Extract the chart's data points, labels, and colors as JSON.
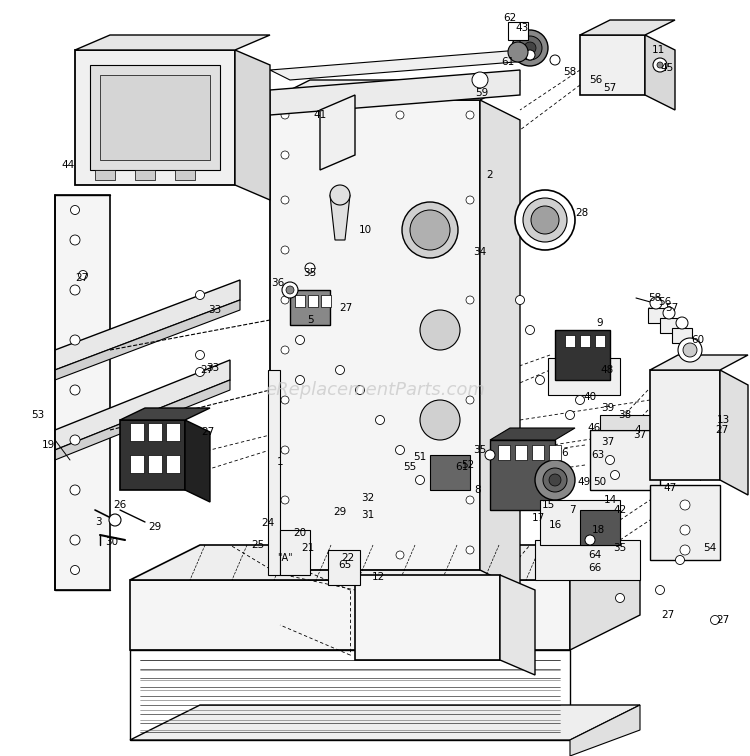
{
  "background_color": "#ffffff",
  "watermark_text": "eReplacementParts.com",
  "figsize": [
    7.5,
    7.56
  ],
  "dpi": 100,
  "line_color": "#000000",
  "gray_light": "#e8e8e8",
  "gray_mid": "#cccccc",
  "gray_dark": "#888888",
  "lw_main": 1.2,
  "lw_thin": 0.7,
  "lw_dash": 0.6
}
